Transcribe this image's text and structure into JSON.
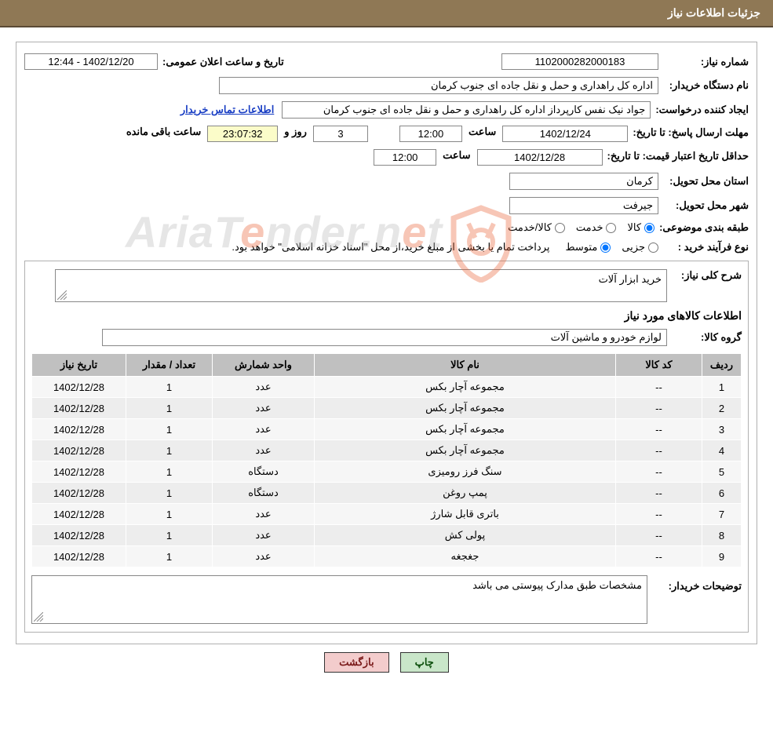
{
  "header": {
    "title": "جزئیات اطلاعات نیاز"
  },
  "info": {
    "need_number_label": "شماره نیاز:",
    "need_number": "1102000282000183",
    "announce_label": "تاریخ و ساعت اعلان عمومی:",
    "announce_value": "1402/12/20 - 12:44",
    "buyer_org_label": "نام دستگاه خریدار:",
    "buyer_org": "اداره کل راهداری و حمل و نقل جاده ای جنوب کرمان",
    "requester_label": "ایجاد کننده درخواست:",
    "requester": "جواد  نیک نفس کارپرداز اداره کل راهداری و حمل و نقل جاده ای جنوب کرمان",
    "contact_link": "اطلاعات تماس خریدار",
    "response_deadline_label": "مهلت ارسال پاسخ:",
    "until_date1_label": "تا تاریخ:",
    "response_date": "1402/12/24",
    "hour_label": "ساعت",
    "response_time": "12:00",
    "days_label": "روز و",
    "days": "3",
    "countdown": "23:07:32",
    "countdown_suffix": "ساعت باقی مانده",
    "price_validity_label": "حداقل تاریخ اعتبار قیمت:",
    "until_date2_label": "تا تاریخ:",
    "validity_date": "1402/12/28",
    "validity_time": "12:00",
    "province_label": "استان محل تحویل:",
    "province": "کرمان",
    "city_label": "شهر محل تحویل:",
    "city": "جیرفت",
    "classification_label": "طبقه بندی موضوعی:",
    "opt_goods": "کالا",
    "opt_service": "خدمت",
    "opt_goods_service": "کالا/خدمت",
    "process_label": "نوع فرآیند خرید :",
    "opt_minor": "جزیی",
    "opt_medium": "متوسط",
    "process_note": "پرداخت تمام یا بخشی از مبلغ خرید،از محل \"اسناد خزانه اسلامی\" خواهد بود."
  },
  "need": {
    "desc_label": "شرح کلی نیاز:",
    "desc": "خرید ابزار آلات",
    "items_title": "اطلاعات کالاهای مورد نیاز",
    "group_label": "گروه کالا:",
    "group": "لوازم خودرو و ماشین آلات"
  },
  "table": {
    "headers": {
      "row": "ردیف",
      "code": "کد کالا",
      "name": "نام کالا",
      "unit": "واحد شمارش",
      "qty": "تعداد / مقدار",
      "date": "تاریخ نیاز"
    },
    "rows": [
      {
        "n": "1",
        "code": "--",
        "name": "مجموعه آچار بکس",
        "unit": "عدد",
        "qty": "1",
        "date": "1402/12/28"
      },
      {
        "n": "2",
        "code": "--",
        "name": "مجموعه آچار بکس",
        "unit": "عدد",
        "qty": "1",
        "date": "1402/12/28"
      },
      {
        "n": "3",
        "code": "--",
        "name": "مجموعه آچار بکس",
        "unit": "عدد",
        "qty": "1",
        "date": "1402/12/28"
      },
      {
        "n": "4",
        "code": "--",
        "name": "مجموعه آچار بکس",
        "unit": "عدد",
        "qty": "1",
        "date": "1402/12/28"
      },
      {
        "n": "5",
        "code": "--",
        "name": "سنگ فرز رومیزی",
        "unit": "دستگاه",
        "qty": "1",
        "date": "1402/12/28"
      },
      {
        "n": "6",
        "code": "--",
        "name": "پمپ روغن",
        "unit": "دستگاه",
        "qty": "1",
        "date": "1402/12/28"
      },
      {
        "n": "7",
        "code": "--",
        "name": "باتری قابل شارژ",
        "unit": "عدد",
        "qty": "1",
        "date": "1402/12/28"
      },
      {
        "n": "8",
        "code": "--",
        "name": "پولی کش",
        "unit": "عدد",
        "qty": "1",
        "date": "1402/12/28"
      },
      {
        "n": "9",
        "code": "--",
        "name": "جغجغه",
        "unit": "عدد",
        "qty": "1",
        "date": "1402/12/28"
      }
    ]
  },
  "buyer_desc": {
    "label": "توضیحات خریدار:",
    "text": "مشخصات طبق مدارک پیوستی می باشد"
  },
  "buttons": {
    "print": "چاپ",
    "back": "بازگشت"
  },
  "watermark": {
    "part1": "AriaT",
    "accent": "e",
    "part2": "nder.n",
    "part3": "t"
  },
  "colors": {
    "header_bg": "#8f7855",
    "border": "#b0b0b0",
    "th_bg": "#c0c0c0",
    "td_alt": "#ededed",
    "link": "#1a3fc4",
    "btn_print_bg": "#c9e6c9",
    "btn_back_bg": "#f3cccc",
    "wm_gray": "#b8b8b8",
    "wm_accent": "#e95e31"
  }
}
